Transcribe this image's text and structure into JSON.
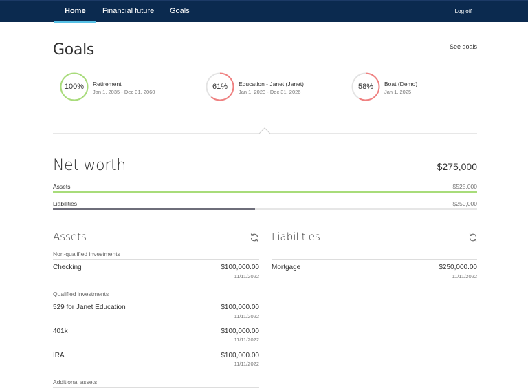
{
  "nav": {
    "items": [
      {
        "label": "Home",
        "active": true
      },
      {
        "label": "Financial future",
        "active": false
      },
      {
        "label": "Goals",
        "active": false
      }
    ],
    "logoff": "Log off"
  },
  "goals": {
    "title": "Goals",
    "see_goals": "See goals",
    "items": [
      {
        "pct": "100%",
        "progress": 1.0,
        "name": "Retirement",
        "dates": "Jan 1, 2035 - Dec 31, 2060",
        "color": "#a8dc7a"
      },
      {
        "pct": "61%",
        "progress": 0.61,
        "name": "Education - Janet (Janet)",
        "dates": "Jan 1, 2023 - Dec 31, 2026",
        "color": "#f08080"
      },
      {
        "pct": "58%",
        "progress": 0.58,
        "name": "Boat (Demo)",
        "dates": "Jan 1, 2025",
        "color": "#f08080"
      }
    ]
  },
  "net_worth": {
    "title": "Net worth",
    "value": "$275,000",
    "assets_label": "Assets",
    "assets_value": "$525,000",
    "assets_fraction": 1.0,
    "assets_color": "#a8dc7a",
    "liabilities_label": "Liabilities",
    "liabilities_value": "$250,000",
    "liabilities_fraction": 0.476,
    "liabilities_color": "#6e6e7a"
  },
  "assets": {
    "title": "Assets",
    "groups": [
      {
        "label": "Non-qualified investments",
        "rows": [
          {
            "name": "Checking",
            "amount": "$100,000.00",
            "date": "11/11/2022"
          }
        ]
      },
      {
        "label": "Qualified investments",
        "rows": [
          {
            "name": "529 for Janet Education",
            "amount": "$100,000.00",
            "date": "11/11/2022"
          },
          {
            "name": "401k",
            "amount": "$100,000.00",
            "date": "11/11/2022"
          },
          {
            "name": "IRA",
            "amount": "$100,000.00",
            "date": "11/11/2022"
          }
        ]
      },
      {
        "label": "Additional assets",
        "rows": []
      }
    ]
  },
  "liabilities": {
    "title": "Liabilities",
    "rows": [
      {
        "name": "Mortgage",
        "amount": "$250,000.00",
        "date": "11/11/2022"
      }
    ]
  },
  "icons": {
    "refresh": "refresh-icon"
  }
}
